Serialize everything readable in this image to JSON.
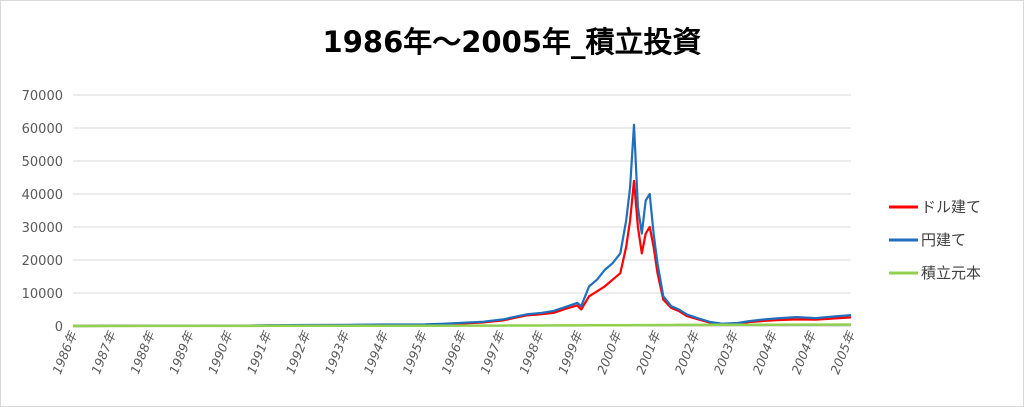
{
  "chart_data": {
    "type": "line",
    "title": "1986年～2005年_積立投資",
    "xlabel": "",
    "ylabel": "",
    "ylim": [
      0,
      70000
    ],
    "y_ticks": [
      "0",
      "10000",
      "20000",
      "30000",
      "40000",
      "50000",
      "60000",
      "70000"
    ],
    "x_ticks": [
      "1986年",
      "1987年",
      "1988年",
      "1989年",
      "1990年",
      "1991年",
      "1992年",
      "1993年",
      "1994年",
      "1995年",
      "1996年",
      "1997年",
      "1998年",
      "1999年",
      "2000年",
      "2001年",
      "2002年",
      "2003年",
      "2004年",
      "2004年",
      "2005年"
    ],
    "grid": true,
    "legend_position": "right",
    "x": [
      1986.0,
      1987.0,
      1988.0,
      1989.0,
      1990.0,
      1990.5,
      1991.0,
      1992.0,
      1993.0,
      1994.0,
      1995.0,
      1995.5,
      1996.0,
      1996.5,
      1997.0,
      1997.3,
      1997.6,
      1998.0,
      1998.3,
      1998.6,
      1998.9,
      1999.0,
      1999.2,
      1999.4,
      1999.6,
      1999.8,
      2000.0,
      2000.15,
      2000.25,
      2000.35,
      2000.45,
      2000.55,
      2000.65,
      2000.75,
      2000.85,
      2000.95,
      2001.1,
      2001.3,
      2001.5,
      2001.7,
      2002.0,
      2002.3,
      2002.6,
      2003.0,
      2003.3,
      2003.6,
      2004.0,
      2004.5,
      2005.0,
      2005.5,
      2005.9
    ],
    "series": [
      {
        "name": "ドル建て",
        "color": "#ff0000",
        "values": [
          0,
          20,
          40,
          60,
          90,
          100,
          150,
          200,
          250,
          350,
          400,
          600,
          800,
          1100,
          1700,
          2500,
          3200,
          3600,
          4000,
          5200,
          6200,
          5000,
          9000,
          10500,
          12000,
          14000,
          16000,
          24000,
          32000,
          44000,
          30000,
          22000,
          28000,
          30000,
          24000,
          16000,
          8000,
          5500,
          4500,
          3000,
          2000,
          1000,
          600,
          700,
          1200,
          1500,
          1800,
          2000,
          1900,
          2300,
          2600
        ]
      },
      {
        "name": "円建て",
        "color": "#1f6fbd",
        "values": [
          0,
          20,
          40,
          60,
          90,
          120,
          250,
          300,
          350,
          450,
          500,
          700,
          1000,
          1300,
          2000,
          2800,
          3500,
          4000,
          4600,
          5800,
          7000,
          6000,
          12000,
          14000,
          17000,
          19000,
          22000,
          32000,
          42000,
          61000,
          36000,
          28000,
          38000,
          40000,
          28000,
          19000,
          9000,
          6000,
          5000,
          3500,
          2300,
          1200,
          700,
          900,
          1500,
          1900,
          2300,
          2700,
          2400,
          2900,
          3300
        ]
      },
      {
        "name": "積立元本",
        "color": "#92d050",
        "values": [
          0,
          10,
          20,
          30,
          40,
          45,
          50,
          60,
          70,
          80,
          90,
          100,
          110,
          120,
          130,
          140,
          150,
          160,
          170,
          180,
          190,
          195,
          200,
          210,
          220,
          230,
          240,
          250,
          255,
          260,
          265,
          270,
          275,
          280,
          285,
          290,
          300,
          310,
          320,
          330,
          340,
          350,
          360,
          370,
          380,
          390,
          400,
          410,
          420,
          430,
          440
        ]
      }
    ]
  }
}
